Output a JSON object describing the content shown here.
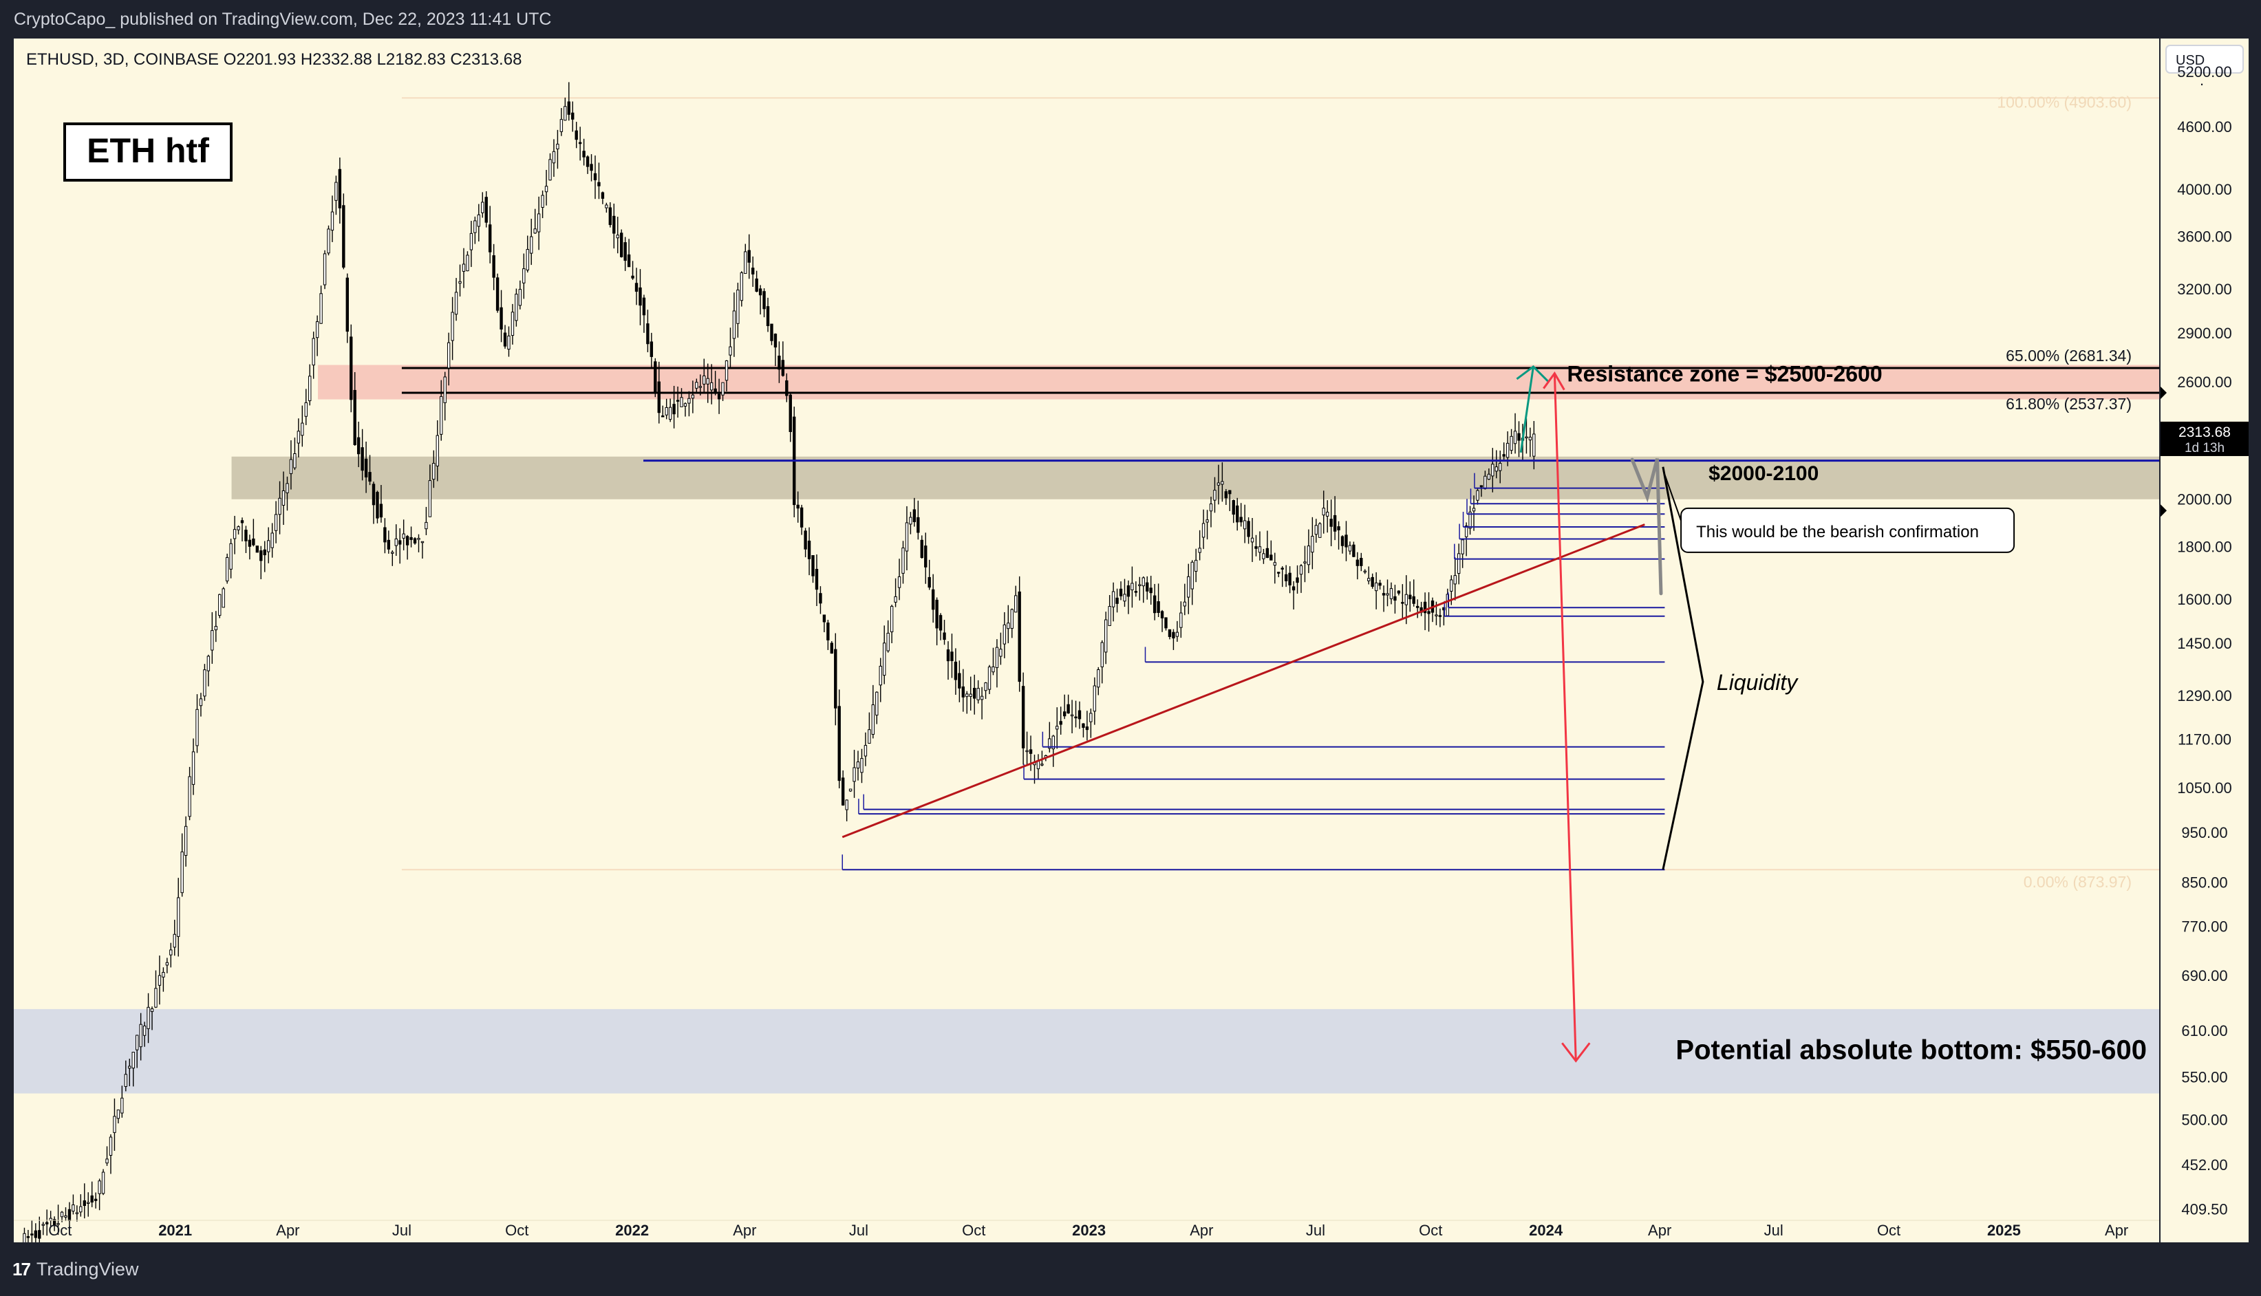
{
  "header": {
    "attribution": "CryptoCapo_ published on TradingView.com, Dec 22, 2023 11:41 UTC"
  },
  "symbol_line": "ETHUSD, 3D, COINBASE  O2201.93  H2332.88  L2182.83  C2313.68",
  "chart_title": "ETH htf",
  "currency": "USD",
  "price_axis_labels": [
    "5200.00",
    "4600.00",
    "4000.00",
    "3600.00",
    "3200.00",
    "2900.00",
    "2600.00",
    "2000.00",
    "1800.00",
    "1600.00",
    "1450.00",
    "1290.00",
    "1170.00",
    "1050.00",
    "950.00",
    "850.00",
    "770.00",
    "690.00",
    "610.00",
    "550.00",
    "500.00",
    "452.00",
    "409.50"
  ],
  "time_axis_labels": [
    "Oct",
    "2021",
    "Apr",
    "Jul",
    "Oct",
    "2022",
    "Apr",
    "Jul",
    "Oct",
    "2023",
    "Apr",
    "Jul",
    "Oct",
    "2024",
    "Apr",
    "Jul",
    "Oct",
    "2025",
    "Apr"
  ],
  "current_price": {
    "value": "2313.68",
    "countdown": "1d 13h"
  },
  "fib": {
    "top": "100.00% (4903.60)",
    "l65": "65.00% (2681.34)",
    "l618": "61.80% (2537.37)",
    "bottom": "0.00% (873.97)"
  },
  "annotations": {
    "resistance": "Resistance zone = $2500-2600",
    "support": "$2000-2100",
    "bearish": "This would be the bearish confirmation",
    "liquidity": "Liquidity",
    "bottom": "Potential absolute bottom: $550-600"
  },
  "footer": {
    "brand": "TradingView"
  },
  "colors": {
    "background": "#fdf8e1",
    "resistance_zone": "#f7c9bd",
    "support_zone": "#cfc8b0",
    "bottom_zone": "#d8dce6",
    "liquidity_lines": "#1a1aa0",
    "trendline": "#b8161b",
    "projection": "#f23645",
    "up_arrow": "#089981"
  },
  "chart_data": {
    "type": "candlestick",
    "symbol": "ETHUSD",
    "interval": "3D",
    "exchange": "COINBASE",
    "last_bar": {
      "open": 2201.93,
      "high": 2332.88,
      "low": 2182.83,
      "close": 2313.68
    },
    "y_scale": "log",
    "ylim": [
      380,
      5600
    ],
    "xlim": [
      "2020-08-25",
      "2025-05-05"
    ],
    "path_points": [
      [
        "2020-09-01",
        380
      ],
      [
        "2020-11-01",
        420
      ],
      [
        "2020-11-25",
        560
      ],
      [
        "2021-01-01",
        740
      ],
      [
        "2021-01-20",
        1250
      ],
      [
        "2021-02-20",
        1900
      ],
      [
        "2021-03-15",
        1750
      ],
      [
        "2021-04-15",
        2400
      ],
      [
        "2021-05-12",
        4200
      ],
      [
        "2021-05-25",
        2300
      ],
      [
        "2021-06-22",
        1800
      ],
      [
        "2021-07-20",
        1850
      ],
      [
        "2021-08-15",
        3200
      ],
      [
        "2021-09-05",
        3900
      ],
      [
        "2021-09-22",
        2800
      ],
      [
        "2021-11-10",
        4800
      ],
      [
        "2021-12-10",
        3900
      ],
      [
        "2022-01-10",
        3100
      ],
      [
        "2022-01-25",
        2400
      ],
      [
        "2022-03-01",
        2600
      ],
      [
        "2022-03-14",
        2500
      ],
      [
        "2022-04-03",
        3500
      ],
      [
        "2022-04-20",
        3000
      ],
      [
        "2022-05-08",
        2500
      ],
      [
        "2022-05-12",
        2000
      ],
      [
        "2022-06-12",
        1400
      ],
      [
        "2022-06-18",
        1000
      ],
      [
        "2022-07-08",
        1150
      ],
      [
        "2022-08-14",
        1980
      ],
      [
        "2022-09-01",
        1550
      ],
      [
        "2022-09-22",
        1300
      ],
      [
        "2022-10-10",
        1300
      ],
      [
        "2022-11-05",
        1600
      ],
      [
        "2022-11-10",
        1150
      ],
      [
        "2022-11-22",
        1100
      ],
      [
        "2022-12-15",
        1250
      ],
      [
        "2023-01-01",
        1200
      ],
      [
        "2023-01-20",
        1600
      ],
      [
        "2023-02-15",
        1650
      ],
      [
        "2023-03-10",
        1450
      ],
      [
        "2023-04-15",
        2100
      ],
      [
        "2023-05-15",
        1800
      ],
      [
        "2023-06-15",
        1650
      ],
      [
        "2023-07-10",
        1950
      ],
      [
        "2023-08-17",
        1650
      ],
      [
        "2023-09-10",
        1600
      ],
      [
        "2023-10-12",
        1550
      ],
      [
        "2023-11-10",
        2050
      ],
      [
        "2023-12-10",
        2300
      ],
      [
        "2023-12-22",
        2313.68
      ]
    ],
    "levels": {
      "fib_100": 4903.6,
      "fib_65": 2681.34,
      "fib_618": 2537.37,
      "fib_0": 873.97,
      "resistance_zone": [
        2500,
        2700
      ],
      "support_zone": [
        2000,
        2200
      ],
      "bottom_zone": [
        530,
        640
      ],
      "blue_line": 2180
    },
    "liquidity_levels": [
      2050,
      1980,
      1935,
      1880,
      1830,
      1750,
      1570,
      1540,
      1390,
      1150,
      1070,
      1000,
      990,
      874
    ],
    "trendline": [
      [
        "2022-06-18",
        940
      ],
      [
        "2024-03-20",
        1890
      ]
    ],
    "projection_arrow": [
      [
        "2024-01-08",
        2650
      ],
      [
        "2024-01-25",
        570
      ]
    ]
  }
}
